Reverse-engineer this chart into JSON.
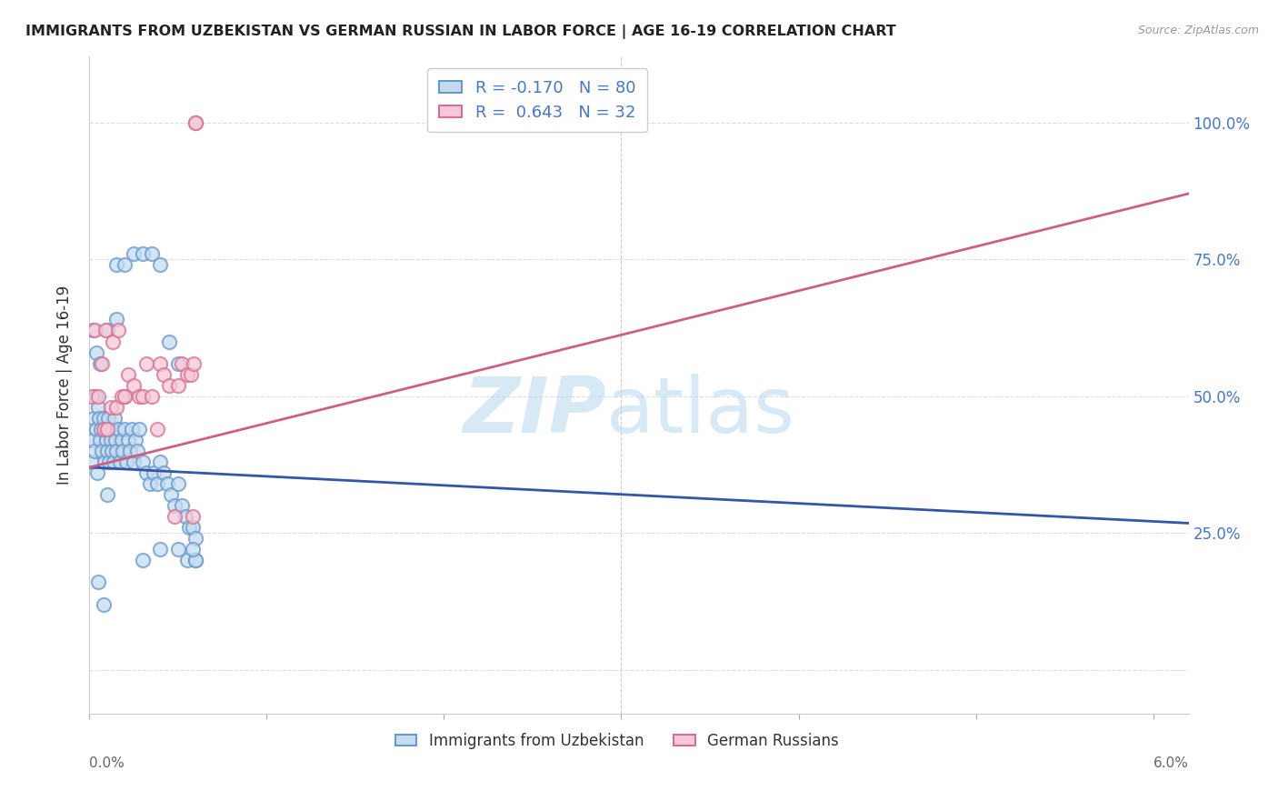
{
  "title": "IMMIGRANTS FROM UZBEKISTAN VS GERMAN RUSSIAN IN LABOR FORCE | AGE 16-19 CORRELATION CHART",
  "source": "Source: ZipAtlas.com",
  "ylabel": "In Labor Force | Age 16-19",
  "ytick_vals": [
    0.0,
    0.25,
    0.5,
    0.75,
    1.0
  ],
  "ytick_labels": [
    "",
    "25.0%",
    "50.0%",
    "75.0%",
    "100.0%"
  ],
  "xmin": 0.0,
  "xmax": 0.062,
  "ymin": -0.08,
  "ymax": 1.12,
  "legend_label1": "Immigrants from Uzbekistan",
  "legend_label2": "German Russians",
  "color_uzbek_fill": "#c5dcf0",
  "color_uzbek_edge": "#6699cc",
  "color_german_fill": "#f8c8d8",
  "color_german_edge": "#d47090",
  "color_uzbek_line": "#3355aa",
  "color_german_line": "#cc6080",
  "uzbek_line_y0": 0.37,
  "uzbek_line_y1": 0.268,
  "german_line_y0": 0.37,
  "german_line_y1": 0.87,
  "watermark_zip": "ZIP",
  "watermark_atlas": "atlas",
  "uzbek_x": [
    0.00015,
    0.0002,
    0.00025,
    0.0003,
    0.00035,
    0.0004,
    0.00045,
    0.0005,
    0.00055,
    0.0006,
    0.00065,
    0.0007,
    0.0008,
    0.00085,
    0.0009,
    0.00095,
    0.001,
    0.00105,
    0.0011,
    0.00115,
    0.0012,
    0.00125,
    0.0013,
    0.00135,
    0.0014,
    0.00145,
    0.0015,
    0.0016,
    0.0017,
    0.0018,
    0.0019,
    0.002,
    0.0021,
    0.0022,
    0.0023,
    0.0024,
    0.0025,
    0.0026,
    0.0027,
    0.0028,
    0.003,
    0.0032,
    0.0034,
    0.0036,
    0.0038,
    0.004,
    0.0042,
    0.0044,
    0.0046,
    0.0048,
    0.005,
    0.0052,
    0.0054,
    0.0056,
    0.0058,
    0.006,
    0.0002,
    0.0004,
    0.0006,
    0.0008,
    0.001,
    0.0015,
    0.002,
    0.0025,
    0.003,
    0.0035,
    0.004,
    0.0045,
    0.005,
    0.0055,
    0.006,
    0.0015,
    0.002,
    0.003,
    0.004,
    0.005,
    0.0005,
    0.001,
    0.006,
    0.0058
  ],
  "uzbek_y": [
    0.38,
    0.42,
    0.46,
    0.4,
    0.5,
    0.44,
    0.36,
    0.48,
    0.46,
    0.42,
    0.44,
    0.4,
    0.46,
    0.38,
    0.44,
    0.42,
    0.4,
    0.46,
    0.38,
    0.44,
    0.42,
    0.4,
    0.44,
    0.38,
    0.46,
    0.42,
    0.4,
    0.44,
    0.38,
    0.42,
    0.4,
    0.44,
    0.38,
    0.42,
    0.4,
    0.44,
    0.38,
    0.42,
    0.4,
    0.44,
    0.38,
    0.36,
    0.34,
    0.36,
    0.34,
    0.38,
    0.36,
    0.34,
    0.32,
    0.3,
    0.34,
    0.3,
    0.28,
    0.26,
    0.26,
    0.24,
    0.62,
    0.58,
    0.56,
    0.12,
    0.62,
    0.74,
    0.74,
    0.76,
    0.76,
    0.76,
    0.74,
    0.6,
    0.56,
    0.2,
    0.2,
    0.64,
    0.5,
    0.2,
    0.22,
    0.22,
    0.16,
    0.32,
    0.2,
    0.22
  ],
  "german_x": [
    0.00015,
    0.0003,
    0.0005,
    0.0007,
    0.0008,
    0.0009,
    0.001,
    0.0012,
    0.0013,
    0.0015,
    0.0016,
    0.0018,
    0.002,
    0.0022,
    0.0025,
    0.0028,
    0.003,
    0.0032,
    0.0035,
    0.0038,
    0.004,
    0.0042,
    0.0045,
    0.0048,
    0.005,
    0.0052,
    0.0055,
    0.0057,
    0.0058,
    0.0059,
    0.006,
    0.006
  ],
  "german_y": [
    0.5,
    0.62,
    0.5,
    0.56,
    0.44,
    0.62,
    0.44,
    0.48,
    0.6,
    0.48,
    0.62,
    0.5,
    0.5,
    0.54,
    0.52,
    0.5,
    0.5,
    0.56,
    0.5,
    0.44,
    0.56,
    0.54,
    0.52,
    0.28,
    0.52,
    0.56,
    0.54,
    0.54,
    0.28,
    0.56,
    1.0,
    1.0
  ]
}
